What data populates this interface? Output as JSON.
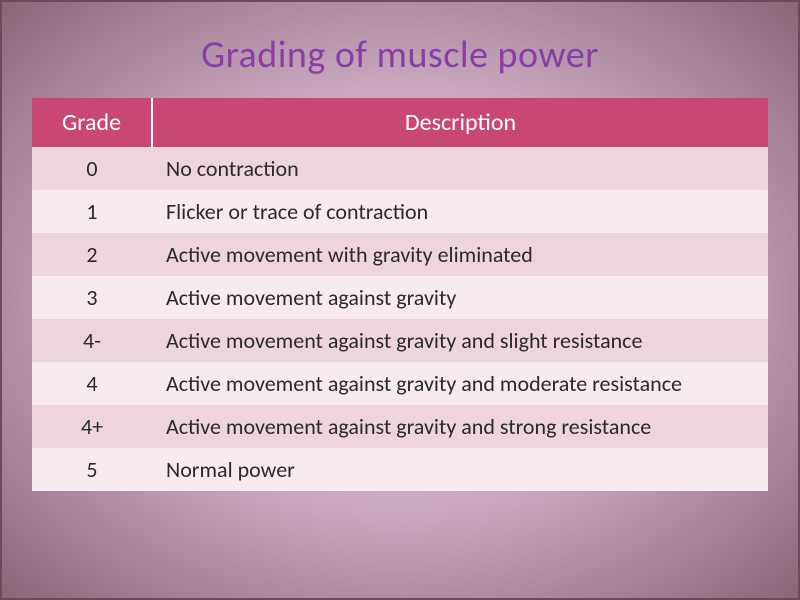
{
  "title": "Grading of muscle power",
  "table": {
    "type": "table",
    "columns": [
      "Grade",
      "Description"
    ],
    "column_widths": [
      "120px",
      "auto"
    ],
    "column_align": [
      "center",
      "left"
    ],
    "rows": [
      [
        "0",
        "No contraction"
      ],
      [
        "1",
        "Flicker or trace of contraction"
      ],
      [
        "2",
        "Active movement with gravity eliminated"
      ],
      [
        "3",
        "Active movement against gravity"
      ],
      [
        "4-",
        "Active movement against gravity and slight resistance"
      ],
      [
        "4",
        "Active movement against gravity and moderate resistance"
      ],
      [
        "4+",
        "Active movement against gravity and strong resistance"
      ],
      [
        "5",
        "Normal power"
      ]
    ],
    "header_bg": "#c94774",
    "header_color": "#ffffff",
    "header_fontsize": 24,
    "row_odd_bg": "#eed5dd",
    "row_even_bg": "#f7ebef",
    "cell_color": "#2a2a2a",
    "cell_fontsize": 22
  },
  "styling": {
    "slide_bg_gradient": [
      "#e8d4e0",
      "#c9a8bf",
      "#8a6578"
    ],
    "slide_border_color": "#6b4a5c",
    "title_color": "#8a3ca8",
    "title_fontsize": 38,
    "font_family": "Calibri"
  }
}
